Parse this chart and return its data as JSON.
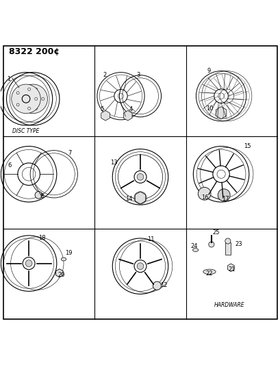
{
  "title": "8322 200¢",
  "background_color": "#ffffff",
  "line_color": "#000000",
  "figsize": [
    4.1,
    5.33
  ],
  "dpi": 100,
  "labels": {
    "disc_type": "DISC TYPE",
    "hardware": "HARDWARE"
  }
}
